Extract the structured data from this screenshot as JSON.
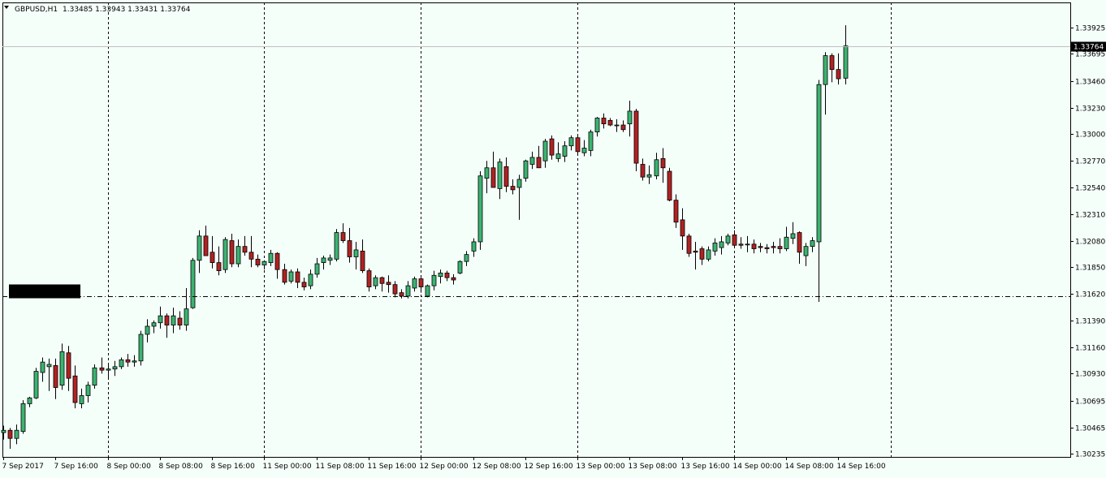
{
  "header": {
    "symbol": "GBPUSD,H1",
    "ohlc": "1.33485 1.33943 1.33431 1.33764",
    "menu_icon": "triangle-down-icon"
  },
  "colors": {
    "background": "#f5fffa",
    "bull_fill": "#3cb371",
    "bear_fill": "#b22222",
    "wick": "#000000",
    "grid": "#000000",
    "price_label_bg": "#000000",
    "price_label_text": "#ffffff"
  },
  "chart_data": {
    "type": "candlestick",
    "title": "GBPUSD,H1",
    "ylim": [
      1.3021,
      1.3414
    ],
    "grid": "vertical dashed at period separators",
    "current_price": "1.33764",
    "horizontal_level": 1.316,
    "y_ticks": [
      "1.33925",
      "1.33695",
      "1.33460",
      "1.33230",
      "1.33000",
      "1.32770",
      "1.32540",
      "1.32310",
      "1.32080",
      "1.31850",
      "1.31620",
      "1.31390",
      "1.31160",
      "1.30930",
      "1.30695",
      "1.30465",
      "1.30235"
    ],
    "x_ticks": [
      "7 Sep 2017",
      "7 Sep 16:00",
      "8 Sep 00:00",
      "8 Sep 08:00",
      "8 Sep 16:00",
      "11 Sep 00:00",
      "11 Sep 08:00",
      "11 Sep 16:00",
      "12 Sep 00:00",
      "12 Sep 08:00",
      "12 Sep 16:00",
      "13 Sep 00:00",
      "13 Sep 08:00",
      "13 Sep 16:00",
      "14 Sep 00:00",
      "14 Sep 08:00",
      "14 Sep 16:00"
    ],
    "candles": [
      [
        1.3042,
        1.3048,
        1.3036,
        1.3044
      ],
      [
        1.3044,
        1.3046,
        1.3028,
        1.3037
      ],
      [
        1.3037,
        1.3049,
        1.3032,
        1.3044
      ],
      [
        1.3043,
        1.307,
        1.3041,
        1.3067
      ],
      [
        1.3067,
        1.3073,
        1.3064,
        1.3072
      ],
      [
        1.3072,
        1.3098,
        1.3071,
        1.3095
      ],
      [
        1.3094,
        1.3107,
        1.3086,
        1.3103
      ],
      [
        1.3099,
        1.3106,
        1.3078,
        1.3101
      ],
      [
        1.31,
        1.3106,
        1.3071,
        1.3081
      ],
      [
        1.3083,
        1.3119,
        1.3079,
        1.3112
      ],
      [
        1.3111,
        1.3117,
        1.3078,
        1.3089
      ],
      [
        1.3091,
        1.31,
        1.3063,
        1.3068
      ],
      [
        1.3067,
        1.308,
        1.3063,
        1.3074
      ],
      [
        1.3074,
        1.3086,
        1.3068,
        1.3083
      ],
      [
        1.3083,
        1.3101,
        1.308,
        1.3098
      ],
      [
        1.3098,
        1.3107,
        1.3093,
        1.3096
      ],
      [
        1.3096,
        1.3101,
        1.3089,
        1.3097
      ],
      [
        1.3097,
        1.3104,
        1.3091,
        1.3099
      ],
      [
        1.3099,
        1.3107,
        1.3097,
        1.3105
      ],
      [
        1.3105,
        1.311,
        1.3099,
        1.3103
      ],
      [
        1.3103,
        1.3109,
        1.3099,
        1.3104
      ],
      [
        1.3104,
        1.313,
        1.31,
        1.3127
      ],
      [
        1.3127,
        1.314,
        1.312,
        1.3134
      ],
      [
        1.3134,
        1.3139,
        1.3128,
        1.3137
      ],
      [
        1.3137,
        1.3151,
        1.3132,
        1.3143
      ],
      [
        1.3143,
        1.3145,
        1.3124,
        1.3135
      ],
      [
        1.3135,
        1.315,
        1.3128,
        1.3143
      ],
      [
        1.3141,
        1.3147,
        1.3131,
        1.3135
      ],
      [
        1.3135,
        1.3167,
        1.313,
        1.3149
      ],
      [
        1.315,
        1.3193,
        1.3149,
        1.3191
      ],
      [
        1.3191,
        1.3217,
        1.318,
        1.3212
      ],
      [
        1.3212,
        1.3221,
        1.3195,
        1.3195
      ],
      [
        1.3198,
        1.3212,
        1.3184,
        1.3189
      ],
      [
        1.3189,
        1.3203,
        1.3178,
        1.3182
      ],
      [
        1.3183,
        1.3211,
        1.318,
        1.3209
      ],
      [
        1.3208,
        1.3214,
        1.3185,
        1.3188
      ],
      [
        1.3188,
        1.3209,
        1.3185,
        1.3203
      ],
      [
        1.3203,
        1.3212,
        1.3195,
        1.3198
      ],
      [
        1.3198,
        1.3212,
        1.3185,
        1.3192
      ],
      [
        1.3192,
        1.3196,
        1.3185,
        1.3187
      ],
      [
        1.3187,
        1.3191,
        1.3183,
        1.319
      ],
      [
        1.3189,
        1.32,
        1.3186,
        1.3197
      ],
      [
        1.3197,
        1.3198,
        1.3175,
        1.3183
      ],
      [
        1.3183,
        1.3188,
        1.317,
        1.3172
      ],
      [
        1.3173,
        1.3183,
        1.3171,
        1.3181
      ],
      [
        1.3181,
        1.3184,
        1.3167,
        1.3172
      ],
      [
        1.3172,
        1.3176,
        1.3165,
        1.3168
      ],
      [
        1.3169,
        1.3183,
        1.3166,
        1.3179
      ],
      [
        1.3179,
        1.3193,
        1.3176,
        1.3188
      ],
      [
        1.3189,
        1.3195,
        1.3183,
        1.3193
      ],
      [
        1.3191,
        1.3196,
        1.3187,
        1.3193
      ],
      [
        1.3192,
        1.3218,
        1.319,
        1.3215
      ],
      [
        1.3215,
        1.3223,
        1.3206,
        1.3208
      ],
      [
        1.3208,
        1.3219,
        1.3189,
        1.3194
      ],
      [
        1.3194,
        1.3207,
        1.3183,
        1.32
      ],
      [
        1.3199,
        1.3209,
        1.318,
        1.3182
      ],
      [
        1.3182,
        1.3184,
        1.3164,
        1.3168
      ],
      [
        1.3169,
        1.3178,
        1.3166,
        1.3176
      ],
      [
        1.3176,
        1.3177,
        1.3164,
        1.3171
      ],
      [
        1.3172,
        1.3178,
        1.3163,
        1.317
      ],
      [
        1.317,
        1.3173,
        1.3159,
        1.3162
      ],
      [
        1.3163,
        1.3166,
        1.3158,
        1.316
      ],
      [
        1.316,
        1.3173,
        1.3158,
        1.3169
      ],
      [
        1.3167,
        1.3177,
        1.3164,
        1.3175
      ],
      [
        1.3175,
        1.3176,
        1.3163,
        1.3168
      ],
      [
        1.316,
        1.317,
        1.3159,
        1.3169
      ],
      [
        1.3169,
        1.3182,
        1.3165,
        1.3178
      ],
      [
        1.3177,
        1.3183,
        1.3171,
        1.318
      ],
      [
        1.318,
        1.3182,
        1.3173,
        1.3176
      ],
      [
        1.3176,
        1.3179,
        1.317,
        1.3174
      ],
      [
        1.318,
        1.3191,
        1.3179,
        1.319
      ],
      [
        1.319,
        1.3199,
        1.3186,
        1.3196
      ],
      [
        1.3199,
        1.321,
        1.3194,
        1.3207
      ],
      [
        1.3207,
        1.3268,
        1.32,
        1.3264
      ],
      [
        1.3262,
        1.3277,
        1.3249,
        1.3271
      ],
      [
        1.3271,
        1.3285,
        1.3256,
        1.3254
      ],
      [
        1.3253,
        1.3279,
        1.3244,
        1.3276
      ],
      [
        1.3272,
        1.328,
        1.325,
        1.3255
      ],
      [
        1.3255,
        1.3261,
        1.3248,
        1.3252
      ],
      [
        1.3254,
        1.3265,
        1.3226,
        1.3261
      ],
      [
        1.3262,
        1.3278,
        1.3259,
        1.3277
      ],
      [
        1.3274,
        1.3285,
        1.327,
        1.328
      ],
      [
        1.328,
        1.329,
        1.3273,
        1.3271
      ],
      [
        1.3277,
        1.3296,
        1.3271,
        1.3294
      ],
      [
        1.3296,
        1.3299,
        1.3278,
        1.3282
      ],
      [
        1.3279,
        1.3293,
        1.3276,
        1.3283
      ],
      [
        1.3281,
        1.3294,
        1.3276,
        1.329
      ],
      [
        1.329,
        1.3299,
        1.3286,
        1.3297
      ],
      [
        1.3297,
        1.3299,
        1.3283,
        1.3285
      ],
      [
        1.3284,
        1.3295,
        1.3281,
        1.3288
      ],
      [
        1.3286,
        1.3304,
        1.3281,
        1.3302
      ],
      [
        1.3302,
        1.3315,
        1.3298,
        1.3314
      ],
      [
        1.3314,
        1.3318,
        1.3305,
        1.3309
      ],
      [
        1.3312,
        1.3314,
        1.3307,
        1.3308
      ],
      [
        1.3308,
        1.3313,
        1.3302,
        1.3308
      ],
      [
        1.3308,
        1.3312,
        1.3302,
        1.3304
      ],
      [
        1.3309,
        1.3329,
        1.3298,
        1.332
      ],
      [
        1.332,
        1.3322,
        1.3268,
        1.3275
      ],
      [
        1.3274,
        1.3279,
        1.326,
        1.3263
      ],
      [
        1.3263,
        1.3273,
        1.3257,
        1.3265
      ],
      [
        1.3264,
        1.3284,
        1.3261,
        1.3278
      ],
      [
        1.3279,
        1.3288,
        1.3258,
        1.3271
      ],
      [
        1.3268,
        1.3271,
        1.3242,
        1.3243
      ],
      [
        1.3243,
        1.3248,
        1.3219,
        1.3224
      ],
      [
        1.3226,
        1.3236,
        1.32,
        1.3212
      ],
      [
        1.3212,
        1.3214,
        1.3194,
        1.3197
      ],
      [
        1.3199,
        1.3207,
        1.3183,
        1.3198
      ],
      [
        1.3201,
        1.3203,
        1.3187,
        1.3192
      ],
      [
        1.3192,
        1.3203,
        1.319,
        1.32
      ],
      [
        1.3199,
        1.321,
        1.3195,
        1.3206
      ],
      [
        1.3202,
        1.3212,
        1.3196,
        1.3207
      ],
      [
        1.3206,
        1.3214,
        1.3204,
        1.3212
      ],
      [
        1.3213,
        1.3217,
        1.3202,
        1.3204
      ],
      [
        1.3205,
        1.3211,
        1.3201,
        1.3204
      ],
      [
        1.3205,
        1.3212,
        1.3198,
        1.3205
      ],
      [
        1.3205,
        1.3209,
        1.3197,
        1.3201
      ],
      [
        1.3203,
        1.3206,
        1.3198,
        1.3202
      ],
      [
        1.3202,
        1.3205,
        1.3197,
        1.3201
      ],
      [
        1.3203,
        1.3207,
        1.3197,
        1.3202
      ],
      [
        1.3203,
        1.321,
        1.3197,
        1.3201
      ],
      [
        1.3201,
        1.322,
        1.3199,
        1.3211
      ],
      [
        1.321,
        1.3224,
        1.3205,
        1.3214
      ],
      [
        1.3215,
        1.3216,
        1.3188,
        1.3198
      ],
      [
        1.3195,
        1.3206,
        1.3186,
        1.3203
      ],
      [
        1.3203,
        1.3211,
        1.3198,
        1.3208
      ],
      [
        1.3207,
        1.3347,
        1.3155,
        1.3343
      ],
      [
        1.3343,
        1.3371,
        1.3317,
        1.3368
      ],
      [
        1.3368,
        1.337,
        1.3345,
        1.3356
      ],
      [
        1.3356,
        1.337,
        1.3343,
        1.3348
      ],
      [
        1.33485,
        1.33943,
        1.33431,
        1.33764
      ]
    ]
  }
}
